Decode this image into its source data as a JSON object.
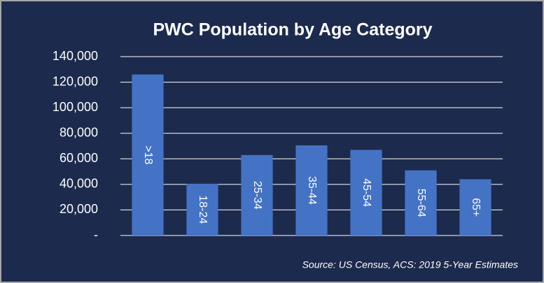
{
  "chart_data": {
    "type": "bar",
    "title": "PWC Population by Age Category",
    "categories": [
      ">18",
      "18-24",
      "25-34",
      "35-44",
      "45-54",
      "55-64",
      "65+"
    ],
    "values": [
      126000,
      40500,
      63000,
      70500,
      67000,
      51000,
      44000
    ],
    "color": "#4472c4",
    "ylim": [
      0,
      140000
    ],
    "yticks": [
      {
        "value": 0,
        "label": "-"
      },
      {
        "value": 20000,
        "label": "20,000"
      },
      {
        "value": 40000,
        "label": "40,000"
      },
      {
        "value": 60000,
        "label": "60,000"
      },
      {
        "value": 80000,
        "label": "80,000"
      },
      {
        "value": 100000,
        "label": "100,000"
      },
      {
        "value": 120000,
        "label": "120,000"
      },
      {
        "value": 140000,
        "label": "140,000"
      }
    ],
    "grid": true,
    "annotation": "Source: US Census, ACS: 2019 5-Year Estimates"
  }
}
